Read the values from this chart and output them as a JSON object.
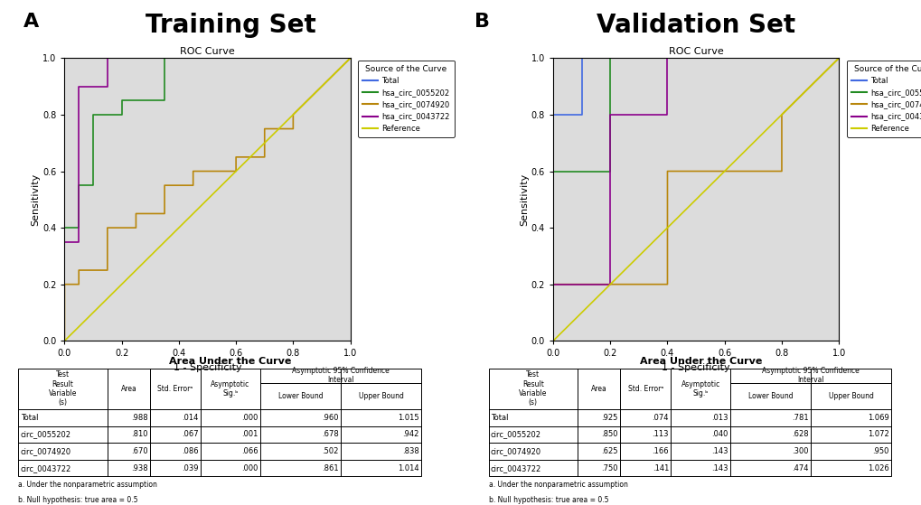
{
  "panel_A_title": "Training Set",
  "panel_B_title": "Validation Set",
  "roc_subtitle": "ROC Curve",
  "legend_title": "Source of the Curve",
  "xlabel": "1 - Specificity",
  "ylabel": "Sensitivity",
  "training": {
    "Total": {
      "fpr": [
        0.0,
        0.0,
        1.0
      ],
      "tpr": [
        0.0,
        1.0,
        1.0
      ],
      "color": "#4169E1"
    },
    "hsa_circ_0055202": {
      "fpr": [
        0.0,
        0.0,
        0.05,
        0.05,
        0.1,
        0.1,
        0.2,
        0.2,
        0.35,
        0.35,
        0.5,
        0.5,
        1.0
      ],
      "tpr": [
        0.0,
        0.4,
        0.4,
        0.55,
        0.55,
        0.8,
        0.8,
        0.85,
        0.85,
        1.0,
        1.0,
        1.0,
        1.0
      ],
      "color": "#228B22"
    },
    "hsa_circ_0074920": {
      "fpr": [
        0.0,
        0.0,
        0.05,
        0.05,
        0.15,
        0.15,
        0.25,
        0.25,
        0.35,
        0.35,
        0.45,
        0.45,
        0.6,
        0.6,
        0.7,
        0.7,
        0.8,
        0.8,
        1.0
      ],
      "tpr": [
        0.0,
        0.2,
        0.2,
        0.25,
        0.25,
        0.4,
        0.4,
        0.45,
        0.45,
        0.55,
        0.55,
        0.6,
        0.6,
        0.65,
        0.65,
        0.75,
        0.75,
        0.8,
        1.0
      ],
      "color": "#B8860B"
    },
    "hsa_circ_0043722": {
      "fpr": [
        0.0,
        0.0,
        0.05,
        0.05,
        0.15,
        0.15,
        1.0
      ],
      "tpr": [
        0.0,
        0.35,
        0.35,
        0.9,
        0.9,
        1.0,
        1.0
      ],
      "color": "#8B008B"
    },
    "Reference": {
      "fpr": [
        0.0,
        1.0
      ],
      "tpr": [
        0.0,
        1.0
      ],
      "color": "#CCCC00"
    }
  },
  "validation": {
    "Total": {
      "fpr": [
        0.0,
        0.0,
        0.1,
        0.1,
        1.0
      ],
      "tpr": [
        0.0,
        0.8,
        0.8,
        1.0,
        1.0
      ],
      "color": "#4169E1"
    },
    "hsa_circ_0055202": {
      "fpr": [
        0.0,
        0.0,
        0.2,
        0.2,
        1.0
      ],
      "tpr": [
        0.0,
        0.6,
        0.6,
        1.0,
        1.0
      ],
      "color": "#228B22"
    },
    "hsa_circ_0074920": {
      "fpr": [
        0.0,
        0.0,
        0.4,
        0.4,
        0.8,
        0.8,
        1.0
      ],
      "tpr": [
        0.0,
        0.2,
        0.2,
        0.6,
        0.6,
        0.8,
        1.0
      ],
      "color": "#B8860B"
    },
    "hsa_circ_0043722": {
      "fpr": [
        0.0,
        0.0,
        0.2,
        0.2,
        0.4,
        0.4,
        1.0
      ],
      "tpr": [
        0.0,
        0.2,
        0.2,
        0.8,
        0.8,
        1.0,
        1.0
      ],
      "color": "#8B008B"
    },
    "Reference": {
      "fpr": [
        0.0,
        1.0
      ],
      "tpr": [
        0.0,
        1.0
      ],
      "color": "#CCCC00"
    }
  },
  "table_title": "Area Under the Curve",
  "training_table": [
    [
      "Total",
      ".988",
      ".014",
      ".000",
      ".960",
      "1.015"
    ],
    [
      "circ_0055202",
      ".810",
      ".067",
      ".001",
      ".678",
      ".942"
    ],
    [
      "circ_0074920",
      ".670",
      ".086",
      ".066",
      ".502",
      ".838"
    ],
    [
      "circ_0043722",
      ".938",
      ".039",
      ".000",
      ".861",
      "1.014"
    ]
  ],
  "validation_table": [
    [
      "Total",
      ".925",
      ".074",
      ".013",
      ".781",
      "1.069"
    ],
    [
      "circ_0055202",
      ".850",
      ".113",
      ".040",
      ".628",
      "1.072"
    ],
    [
      "circ_0074920",
      ".625",
      ".166",
      ".143",
      ".300",
      ".950"
    ],
    [
      "circ_0043722",
      ".750",
      ".141",
      ".143",
      ".474",
      "1.026"
    ]
  ],
  "footnote_a": "a. Under the nonparametric assumption",
  "footnote_b": "b. Null hypothesis: true area = 0.5",
  "plot_bg": "#DCDCDC"
}
